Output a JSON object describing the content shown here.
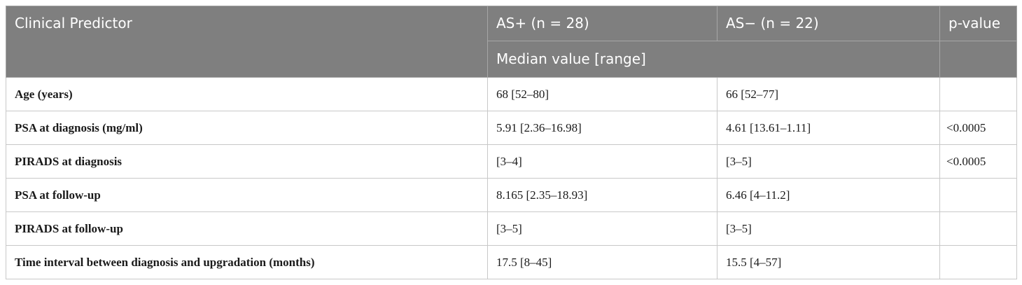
{
  "table": {
    "headers": {
      "predictor": "Clinical Predictor",
      "as_pos": "AS+ (n = 28)",
      "as_neg": "AS− (n = 22)",
      "p_value": "p-value",
      "subheader": "Median value [range]"
    },
    "rows": [
      {
        "predictor": "Age (years)",
        "as_pos": "68 [52–80]",
        "as_neg": "66 [52–77]",
        "p_value": ""
      },
      {
        "predictor": "PSA at diagnosis (mg/ml)",
        "as_pos": "5.91 [2.36–16.98]",
        "as_neg": "4.61 [13.61–1.11]",
        "p_value": "<0.0005"
      },
      {
        "predictor": "PIRADS at diagnosis",
        "as_pos": "[3–4]",
        "as_neg": "[3–5]",
        "p_value": "<0.0005"
      },
      {
        "predictor": "PSA at follow-up",
        "as_pos": "8.165 [2.35–18.93]",
        "as_neg": "6.46 [4–11.2]",
        "p_value": ""
      },
      {
        "predictor": "PIRADS at follow-up",
        "as_pos": "[3–5]",
        "as_neg": "[3–5]",
        "p_value": ""
      },
      {
        "predictor": "Time interval between diagnosis and upgradation (months)",
        "as_pos": "17.5 [8–45]",
        "as_neg": "15.5 [4–57]",
        "p_value": ""
      }
    ]
  }
}
